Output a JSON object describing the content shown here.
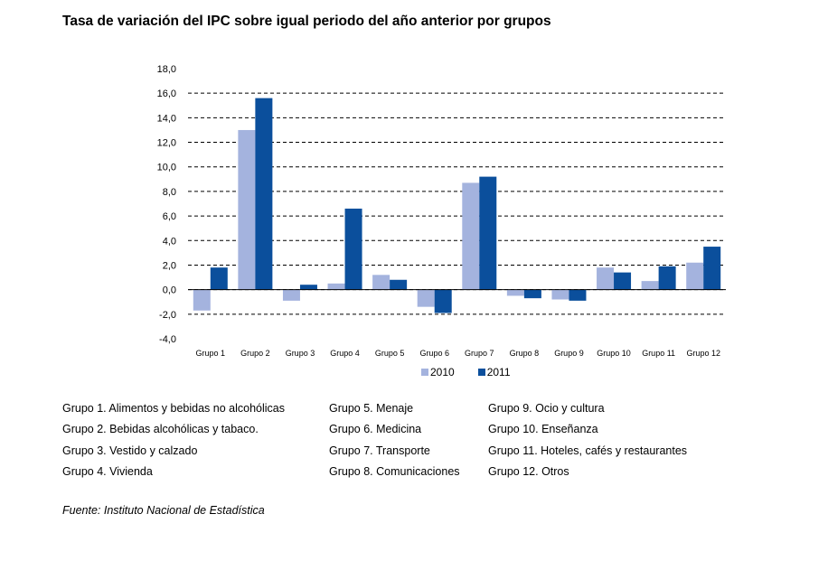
{
  "title": "Tasa de variación del IPC sobre igual periodo del año anterior por grupos",
  "chart_data": {
    "type": "bar",
    "categories": [
      "Grupo 1",
      "Grupo 2",
      "Grupo 3",
      "Grupo 4",
      "Grupo 5",
      "Grupo 6",
      "Grupo 7",
      "Grupo 8",
      "Grupo 9",
      "Grupo 10",
      "Grupo 11",
      "Grupo 12"
    ],
    "series": [
      {
        "name": "2010",
        "color": "#a4b3de",
        "values": [
          -1.7,
          13.0,
          -0.9,
          0.5,
          1.2,
          -1.4,
          8.7,
          -0.5,
          -0.8,
          1.8,
          0.7,
          2.2
        ]
      },
      {
        "name": "2011",
        "color": "#0b4f9c",
        "values": [
          1.8,
          15.6,
          0.4,
          6.6,
          0.8,
          -1.9,
          9.2,
          -0.7,
          -0.9,
          1.4,
          1.9,
          3.5
        ]
      }
    ],
    "ylim": [
      -4.0,
      18.0
    ],
    "yticks": [
      "18,0",
      "16,0",
      "14,0",
      "12,0",
      "10,0",
      "8,0",
      "6,0",
      "4,0",
      "2,0",
      "0,0",
      "-2,0",
      "-4,0"
    ],
    "grid": true,
    "legend_position": "bottom"
  },
  "group_descriptions": [
    [
      "Grupo 1. Alimentos y bebidas no alcohólicas",
      "Grupo 2. Bebidas alcohólicas y  tabaco.",
      "Grupo 3. Vestido y calzado",
      "Grupo 4. Vivienda"
    ],
    [
      "Grupo 5. Menaje",
      "Grupo 6. Medicina",
      "Grupo 7. Transporte",
      "Grupo 8. Comunicaciones"
    ],
    [
      "Grupo 9. Ocio y cultura",
      "Grupo 10. Enseñanza",
      "Grupo 11. Hoteles, cafés y restaurantes",
      "Grupo 12. Otros"
    ]
  ],
  "source": "Fuente: Instituto Nacional de Estadística"
}
